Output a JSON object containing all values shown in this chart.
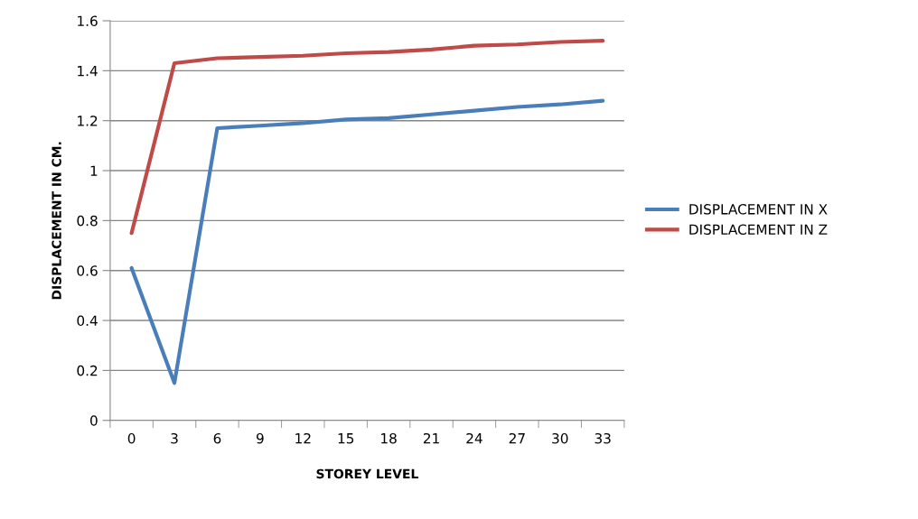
{
  "chart_data": {
    "type": "line",
    "xlabel": "STOREY LEVEL",
    "ylabel": "DISPLACEMENT IN CM.",
    "categories": [
      "0",
      "3",
      "6",
      "9",
      "12",
      "15",
      "18",
      "21",
      "24",
      "27",
      "30",
      "33"
    ],
    "series": [
      {
        "name": "DISPLACEMENT IN X",
        "color": "#4a7ebb",
        "values": [
          0.61,
          0.15,
          1.17,
          1.18,
          1.19,
          1.205,
          1.21,
          1.225,
          1.24,
          1.255,
          1.265,
          1.28
        ]
      },
      {
        "name": "DISPLACEMENT IN Z",
        "color": "#be4b48",
        "values": [
          0.75,
          1.43,
          1.45,
          1.455,
          1.46,
          1.47,
          1.475,
          1.485,
          1.5,
          1.505,
          1.515,
          1.52
        ]
      }
    ],
    "ylim": [
      0,
      1.6
    ],
    "yticks": [
      0,
      0.2,
      0.4,
      0.6,
      0.8,
      1,
      1.2,
      1.4,
      1.6
    ],
    "grid": "y",
    "legend": "right",
    "marker": "none",
    "line_style": "solid"
  }
}
